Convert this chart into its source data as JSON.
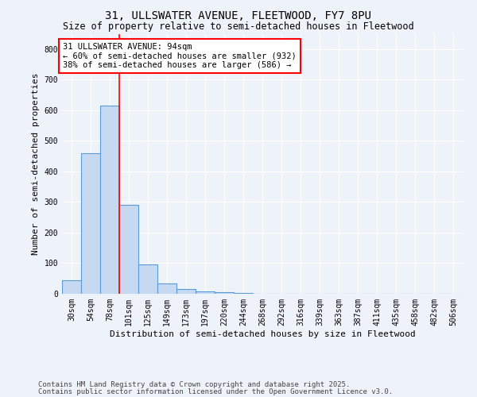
{
  "title": "31, ULLSWATER AVENUE, FLEETWOOD, FY7 8PU",
  "subtitle": "Size of property relative to semi-detached houses in Fleetwood",
  "xlabel": "Distribution of semi-detached houses by size in Fleetwood",
  "ylabel": "Number of semi-detached properties",
  "footnote1": "Contains HM Land Registry data © Crown copyright and database right 2025.",
  "footnote2": "Contains public sector information licensed under the Open Government Licence v3.0.",
  "categories": [
    "30sqm",
    "54sqm",
    "78sqm",
    "101sqm",
    "125sqm",
    "149sqm",
    "173sqm",
    "197sqm",
    "220sqm",
    "244sqm",
    "268sqm",
    "292sqm",
    "316sqm",
    "339sqm",
    "363sqm",
    "387sqm",
    "411sqm",
    "435sqm",
    "458sqm",
    "482sqm",
    "506sqm"
  ],
  "values": [
    45,
    460,
    615,
    290,
    95,
    35,
    15,
    8,
    5,
    3,
    0,
    0,
    0,
    0,
    0,
    0,
    0,
    0,
    0,
    0,
    0
  ],
  "bar_color": "#c6d9f1",
  "bar_edge_color": "#5b9bd5",
  "red_line_x": 2.5,
  "annotation_text": "31 ULLSWATER AVENUE: 94sqm\n← 60% of semi-detached houses are smaller (932)\n38% of semi-detached houses are larger (586) →",
  "ylim": [
    0,
    850
  ],
  "yticks": [
    0,
    100,
    200,
    300,
    400,
    500,
    600,
    700,
    800
  ],
  "background_color": "#eef2f9",
  "plot_bg_color": "#eef2f9",
  "title_fontsize": 10,
  "subtitle_fontsize": 8.5,
  "axis_label_fontsize": 8,
  "tick_fontsize": 7,
  "annotation_fontsize": 7.5,
  "footnote_fontsize": 6.5
}
